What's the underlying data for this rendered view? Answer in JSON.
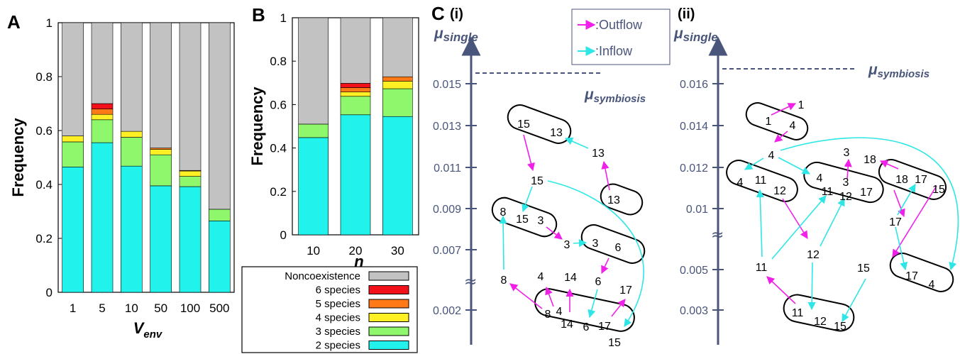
{
  "chart_data": [
    {
      "type": "bar",
      "panel": "A",
      "categories": [
        "1",
        "5",
        "10",
        "50",
        "100",
        "500"
      ],
      "xlabel": "V",
      "xlabel_sub": "env",
      "ylabel": "Frequency",
      "ylim": [
        0,
        1
      ],
      "yticks": [
        "0",
        "0.2",
        "0.4",
        "0.6",
        "0.8",
        "1"
      ],
      "series": [
        {
          "name": "2 species",
          "values": [
            0.465,
            0.555,
            0.468,
            0.395,
            0.392,
            0.265
          ]
        },
        {
          "name": "3 species",
          "values": [
            0.093,
            0.085,
            0.107,
            0.115,
            0.038,
            0.043
          ]
        },
        {
          "name": "4 species",
          "values": [
            0.022,
            0.02,
            0.022,
            0.02,
            0.02,
            0
          ]
        },
        {
          "name": "5 species",
          "values": [
            0,
            0.02,
            0,
            0.005,
            0.002,
            0
          ]
        },
        {
          "name": "6 species",
          "values": [
            0,
            0.02,
            0,
            0,
            0,
            0
          ]
        },
        {
          "name": "Noncoexistence",
          "values": [
            0.42,
            0.3,
            0.403,
            0.465,
            0.548,
            0.692
          ]
        }
      ]
    },
    {
      "type": "bar",
      "panel": "B",
      "categories": [
        "10",
        "20",
        "30"
      ],
      "xlabel": "n",
      "ylabel": "Frequency",
      "ylim": [
        0,
        1
      ],
      "yticks": [
        "0",
        "0.2",
        "0.4",
        "0.6",
        "0.8",
        "1"
      ],
      "series": [
        {
          "name": "2 species",
          "values": [
            0.448,
            0.553,
            0.545
          ]
        },
        {
          "name": "3 species",
          "values": [
            0.062,
            0.085,
            0.128
          ]
        },
        {
          "name": "4 species",
          "values": [
            0,
            0.02,
            0.035
          ]
        },
        {
          "name": "5 species",
          "values": [
            0,
            0.02,
            0.02
          ]
        },
        {
          "name": "6 species",
          "values": [
            0,
            0.02,
            0
          ]
        },
        {
          "name": "Noncoexistence",
          "values": [
            0.49,
            0.302,
            0.272
          ]
        }
      ]
    }
  ],
  "colors": {
    "2 species": "#21f2ec",
    "3 species": "#8ef76c",
    "4 species": "#fff025",
    "5 species": "#ff7a17",
    "6 species": "#f2101a",
    "Noncoexistence": "#c2c2c2",
    "outflow": "#f020e8",
    "inflow": "#2fe6e6",
    "axis": "#49557a"
  },
  "legend": [
    "Noncoexistence",
    "6 species",
    "5 species",
    "4 species",
    "3 species",
    "2 species"
  ],
  "flow_legend": {
    "outflow": ":Outflow",
    "inflow": ":Inflow"
  },
  "panel_c": {
    "letter": "C",
    "sub_i": "(i)",
    "sub_ii": "(ii)",
    "mu_single": "μ",
    "mu_single_sub": "single",
    "mu_symbiosis": "μ",
    "mu_symbiosis_sub": "symbiosis",
    "i_ticks": [
      "0.015",
      "0.013",
      "0.011",
      "0.009",
      "0.007",
      "0.002"
    ],
    "ii_ticks": [
      "0.016",
      "0.014",
      "0.012",
      "0.01",
      "0.005",
      "0.003"
    ],
    "i_nodes": [
      "15",
      "13",
      "13",
      "15",
      "13",
      "8",
      "15",
      "3",
      "3",
      "3",
      "6",
      "8",
      "4",
      "14",
      "6",
      "17",
      "8",
      "4",
      "14",
      "6",
      "17",
      "15"
    ],
    "ii_nodes": [
      "1",
      "4",
      "1",
      "4",
      "3",
      "18",
      "4",
      "11",
      "12",
      "4",
      "3",
      "11",
      "12",
      "17",
      "18",
      "17",
      "15",
      "17",
      "11",
      "12",
      "15",
      "17",
      "4",
      "11",
      "12",
      "15"
    ]
  }
}
